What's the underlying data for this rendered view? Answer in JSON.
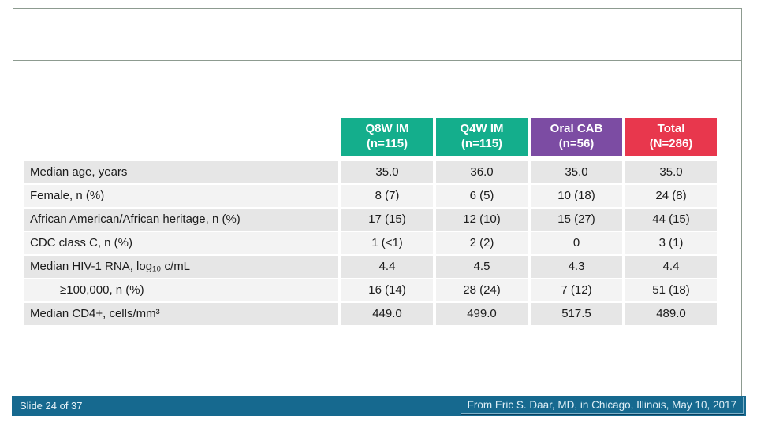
{
  "colors": {
    "footer_bar": "#16698f",
    "placeholder_border": "#8d9b90",
    "row_odd": "#e6e6e6",
    "row_even": "#f3f3f3",
    "header_q8w": "#14ae8c",
    "header_q4w": "#14ae8c",
    "header_oral_cab": "#7c4ca3",
    "header_total": "#e8374d"
  },
  "footer": {
    "slide_label": "Slide 24 of 37",
    "source": "From Eric S. Daar, MD, in Chicago, Illinois, May 10, 2017"
  },
  "table": {
    "columns": [
      {
        "line1": "Q8W IM",
        "line2": "(n=115)",
        "color": "#14ae8c"
      },
      {
        "line1": "Q4W IM",
        "line2": "(n=115)",
        "color": "#14ae8c"
      },
      {
        "line1": "Oral CAB",
        "line2": "(n=56)",
        "color": "#7c4ca3"
      },
      {
        "line1": "Total",
        "line2": "(N=286)",
        "color": "#e8374d"
      }
    ],
    "rows": [
      {
        "label": "Median age, years",
        "indent": false,
        "values": [
          "35.0",
          "36.0",
          "35.0",
          "35.0"
        ]
      },
      {
        "label": "Female, n (%)",
        "indent": false,
        "values": [
          "8 (7)",
          "6 (5)",
          "10 (18)",
          "24 (8)"
        ]
      },
      {
        "label": "African American/African heritage, n (%)",
        "indent": false,
        "values": [
          "17 (15)",
          "12 (10)",
          "15 (27)",
          "44 (15)"
        ]
      },
      {
        "label": "CDC class C, n (%)",
        "indent": false,
        "values": [
          "1 (<1)",
          "2 (2)",
          "0",
          "3 (1)"
        ]
      },
      {
        "label": "Median HIV-1 RNA, log₁₀ c/mL",
        "indent": false,
        "values": [
          "4.4",
          "4.5",
          "4.3",
          "4.4"
        ]
      },
      {
        "label": "≥100,000, n (%)",
        "indent": true,
        "values": [
          "16 (14)",
          "28 (24)",
          "7 (12)",
          "51 (18)"
        ]
      },
      {
        "label": "Median CD4+, cells/mm³",
        "indent": false,
        "values": [
          "449.0",
          "499.0",
          "517.5",
          "489.0"
        ]
      }
    ]
  },
  "chart_data": {
    "type": "table",
    "columns": [
      "",
      "Q8W IM (n=115)",
      "Q4W IM (n=115)",
      "Oral CAB (n=56)",
      "Total (N=286)"
    ],
    "rows": [
      [
        "Median age, years",
        "35.0",
        "36.0",
        "35.0",
        "35.0"
      ],
      [
        "Female, n (%)",
        "8 (7)",
        "6 (5)",
        "10 (18)",
        "24 (8)"
      ],
      [
        "African American/African heritage, n (%)",
        "17 (15)",
        "12 (10)",
        "15 (27)",
        "44 (15)"
      ],
      [
        "CDC class C, n (%)",
        "1 (<1)",
        "2 (2)",
        "0",
        "3 (1)"
      ],
      [
        "Median HIV-1 RNA, log₁₀ c/mL",
        "4.4",
        "4.5",
        "4.3",
        "4.4"
      ],
      [
        "≥100,000, n (%)",
        "16 (14)",
        "28 (24)",
        "7 (12)",
        "51 (18)"
      ],
      [
        "Median CD4+, cells/mm³",
        "449.0",
        "499.0",
        "517.5",
        "489.0"
      ]
    ]
  }
}
